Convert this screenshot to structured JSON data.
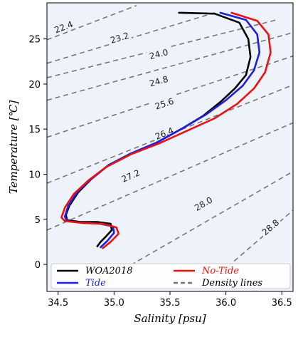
{
  "chart_data": {
    "type": "line",
    "title": "",
    "xlabel": "Salinity [psu]",
    "ylabel": "Temperature [℃]",
    "xlim": [
      34.4,
      36.6
    ],
    "ylim": [
      -3,
      29
    ],
    "xticks": [
      "34.5",
      "35.0",
      "35.5",
      "36.0",
      "36.5"
    ],
    "yticks": [
      "0",
      "5",
      "10",
      "15",
      "20",
      "25"
    ],
    "grid": false,
    "legend_position": "bottom",
    "series": [
      {
        "name": "WOA2018",
        "color": "#000000",
        "x": [
          35.58,
          35.9,
          36.12,
          36.2,
          36.22,
          36.18,
          36.08,
          35.95,
          35.8,
          35.6,
          35.38,
          35.15,
          34.95,
          34.8,
          34.68,
          34.6,
          34.57,
          34.58,
          34.7,
          34.85,
          34.97,
          34.98,
          34.92,
          34.88,
          34.85
        ],
        "y": [
          27.9,
          27.8,
          26.8,
          25.0,
          23.0,
          21.0,
          19.5,
          18.0,
          16.5,
          15.0,
          13.5,
          12.3,
          11.0,
          9.5,
          8.0,
          6.5,
          5.5,
          4.9,
          4.7,
          4.7,
          4.5,
          3.8,
          3.0,
          2.5,
          2.0
        ]
      },
      {
        "name": "Tide",
        "color": "#1f1fdd",
        "x": [
          35.95,
          36.18,
          36.28,
          36.3,
          36.25,
          36.15,
          36.0,
          35.82,
          35.6,
          35.38,
          35.15,
          34.95,
          34.8,
          34.67,
          34.59,
          34.56,
          34.58,
          34.72,
          34.88,
          34.99,
          35.0,
          34.94,
          34.88
        ],
        "y": [
          27.9,
          27.1,
          25.5,
          23.5,
          21.5,
          19.8,
          18.2,
          16.6,
          15.0,
          13.5,
          12.3,
          11.0,
          9.5,
          8.0,
          6.5,
          5.3,
          4.8,
          4.6,
          4.5,
          4.2,
          3.5,
          2.6,
          1.9
        ]
      },
      {
        "name": "No-Tide",
        "color": "#ee1111",
        "x": [
          36.05,
          36.28,
          36.38,
          36.4,
          36.35,
          36.25,
          36.1,
          35.9,
          35.65,
          35.4,
          35.15,
          34.93,
          34.77,
          34.64,
          34.56,
          34.53,
          34.56,
          34.72,
          34.9,
          35.02,
          35.04,
          34.97,
          34.9
        ],
        "y": [
          27.9,
          27.0,
          25.5,
          23.5,
          21.3,
          19.5,
          17.8,
          16.2,
          14.8,
          13.4,
          12.2,
          10.8,
          9.3,
          7.8,
          6.3,
          5.2,
          4.8,
          4.6,
          4.5,
          4.1,
          3.4,
          2.5,
          1.8
        ]
      }
    ],
    "density_lines": {
      "name": "Density lines",
      "color": "#777777",
      "lines": [
        {
          "label": "22.4",
          "x": [
            34.4,
            35.2
          ],
          "y": [
            24.9,
            28.7
          ],
          "label_x": 34.55,
          "label_y": 26.3
        },
        {
          "label": "23.2",
          "x": [
            34.4,
            35.9
          ],
          "y": [
            22.3,
            27.9
          ],
          "label_x": 35.05,
          "label_y": 25.1
        },
        {
          "label": "24.0",
          "x": [
            34.4,
            36.45
          ],
          "y": [
            20.7,
            27.1
          ],
          "label_x": 35.4,
          "label_y": 23.3
        },
        {
          "label": "24.8",
          "x": [
            34.4,
            36.6
          ],
          "y": [
            18.2,
            25.7
          ],
          "label_x": 35.4,
          "label_y": 20.3
        },
        {
          "label": "25.6",
          "x": [
            34.4,
            36.6
          ],
          "y": [
            14.1,
            23.1
          ],
          "label_x": 35.45,
          "label_y": 17.8
        },
        {
          "label": "26.4",
          "x": [
            34.4,
            36.6
          ],
          "y": [
            9.0,
            19.9
          ],
          "label_x": 35.45,
          "label_y": 14.5
        },
        {
          "label": "27.2",
          "x": [
            34.4,
            36.6
          ],
          "y": [
            3.8,
            15.7
          ],
          "label_x": 35.15,
          "label_y": 9.8
        },
        {
          "label": "28.0",
          "x": [
            34.95,
            36.6
          ],
          "y": [
            -1.5,
            10.3
          ],
          "label_x": 35.8,
          "label_y": 6.7
        },
        {
          "label": "28.8",
          "x": [
            35.9,
            36.6
          ],
          "y": [
            -1.5,
            6.0
          ],
          "label_x": 36.4,
          "label_y": 4.1
        }
      ]
    },
    "legend": [
      {
        "label": "WOA2018",
        "color": "#000000",
        "style": "solid"
      },
      {
        "label": "No-Tide",
        "color": "#ee1111",
        "style": "solid"
      },
      {
        "label": "Tide",
        "color": "#1f1fdd",
        "style": "solid"
      },
      {
        "label": "Density lines",
        "color": "#777777",
        "style": "dashed"
      }
    ]
  }
}
